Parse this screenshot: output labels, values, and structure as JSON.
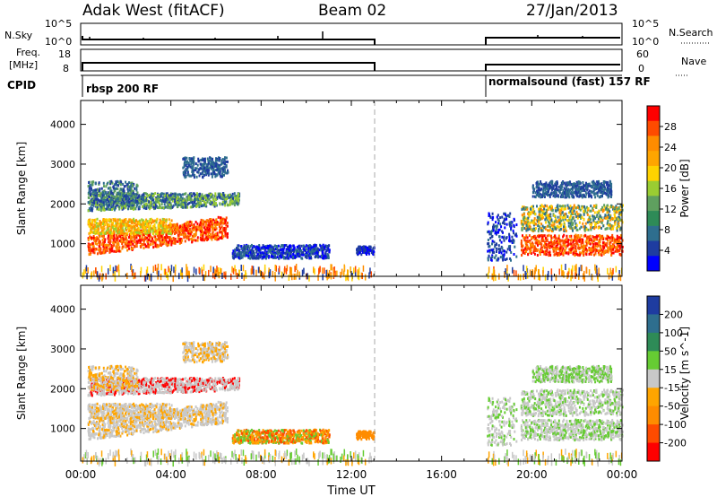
{
  "header": {
    "title": "Adak West (fitACF)",
    "beam": "Beam 02",
    "date": "27/Jan/2013"
  },
  "top_panels": {
    "nsky_label": "N.Sky",
    "nsky_ticks_left": [
      "10^5",
      "10^0"
    ],
    "nsky_ticks_right": [
      "10^5",
      "10^0"
    ],
    "nsearch_label": "N.Search",
    "freq_label_1": "Freq.",
    "freq_label_2": "[MHz]",
    "freq_ticks": [
      "18",
      "8"
    ],
    "nave_ticks": [
      "60",
      "0"
    ],
    "nave_label": "Nave",
    "cpid_label": "CPID",
    "cpid_1": "rbsp 200 RF",
    "cpid_2": "normalsound (fast) 157 RF"
  },
  "power_colorbar": {
    "label": "Power [dB]",
    "ticks": [
      "28",
      "24",
      "20",
      "16",
      "12",
      "8",
      "4"
    ],
    "colors": [
      "#ff0000",
      "#ff4b00",
      "#ff8c00",
      "#ffa500",
      "#ffd200",
      "#9acd32",
      "#5fa05f",
      "#2e8b57",
      "#2e6e8e",
      "#1e3ca0",
      "#0000ff"
    ]
  },
  "velocity_colorbar": {
    "label": "Velocity [m s^-1]",
    "ticks": [
      "200",
      "100",
      "50",
      "15",
      "-15",
      "-50",
      "-100",
      "-200"
    ],
    "colors": [
      "#1e3ca0",
      "#2e6e8e",
      "#2e8b57",
      "#66cc33",
      "#c8c8c8",
      "#ffa500",
      "#ff8c00",
      "#ff4b00",
      "#ff0000"
    ]
  },
  "chart_data": [
    {
      "type": "heatmap",
      "name": "Power",
      "ylabel": "Slant Range [km]",
      "xlabel": "Time UT",
      "xticks": [
        "00:00",
        "04:00",
        "08:00",
        "12:00",
        "16:00",
        "20:00",
        "00:00"
      ],
      "yticks": [
        1000,
        2000,
        3000,
        4000
      ],
      "ylim": [
        180,
        4600
      ],
      "xlim_hours": [
        0,
        24
      ],
      "data_gap_hours": [
        13,
        18
      ]
    },
    {
      "type": "heatmap",
      "name": "Velocity",
      "ylabel": "Slant Range [km]",
      "xlabel": "Time UT",
      "xticks": [
        "00:00",
        "04:00",
        "08:00",
        "12:00",
        "16:00",
        "20:00",
        "00:00"
      ],
      "yticks": [
        1000,
        2000,
        3000,
        4000
      ],
      "ylim": [
        180,
        4600
      ],
      "xlim_hours": [
        0,
        24
      ],
      "data_gap_hours": [
        13,
        18
      ]
    }
  ]
}
